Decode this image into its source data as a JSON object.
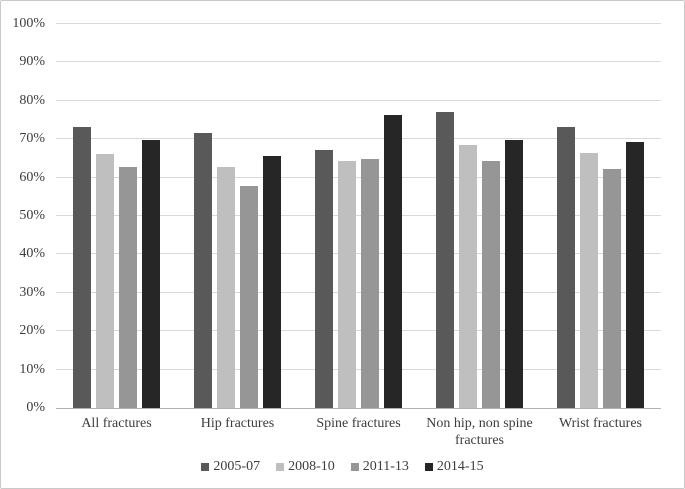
{
  "figure": {
    "background": "#ffffff",
    "border_color": "#c9c9c9",
    "text_color": "#3d3d3d",
    "gridline_color": "#d9d9d9",
    "axis_line_color": "#b3b3b3"
  },
  "chart_data": {
    "type": "bar",
    "title": "",
    "xlabel": "",
    "ylabel": "",
    "grid": true,
    "legend_position": "bottom",
    "ylim": [
      0,
      100
    ],
    "y_tick_step": 10,
    "y_tick_labels": [
      "0%",
      "10%",
      "20%",
      "30%",
      "40%",
      "50%",
      "60%",
      "70%",
      "80%",
      "90%",
      "100%"
    ],
    "categories": [
      "All fractures",
      "Hip fractures",
      "Spine fractures",
      "Non hip, non spine fractures",
      "Wrist fractures"
    ],
    "series": [
      {
        "name": "2005-07",
        "color": "#595959",
        "values": [
          73.3,
          71.5,
          67.2,
          77.1,
          73.2
        ]
      },
      {
        "name": "2008-10",
        "color": "#bfbfbf",
        "values": [
          66.2,
          62.7,
          64.2,
          68.6,
          66.4
        ]
      },
      {
        "name": "2011-13",
        "color": "#969696",
        "values": [
          62.7,
          57.9,
          64.8,
          64.2,
          62.3
        ]
      },
      {
        "name": "2014-15",
        "color": "#262626",
        "values": [
          69.8,
          65.5,
          76.4,
          69.8,
          69.4
        ]
      }
    ]
  }
}
